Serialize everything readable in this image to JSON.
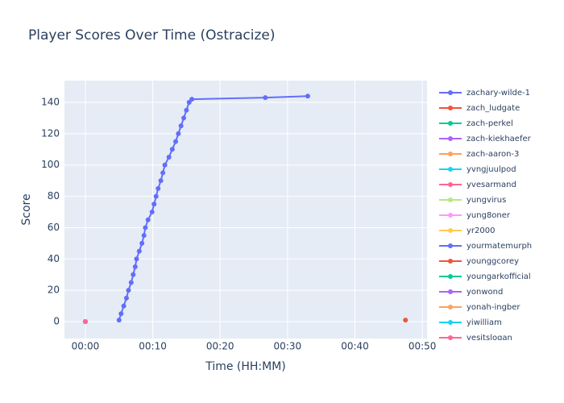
{
  "chart_data": {
    "type": "line",
    "title": "Player Scores Over Time (Ostracize)",
    "x_label": "Time (HH:MM)",
    "y_label": "Score",
    "xlim": [
      -3.1,
      50.7
    ],
    "ylim": [
      -10.8,
      153.9
    ],
    "xticks": [
      {
        "value": 0,
        "label": "00:00"
      },
      {
        "value": 10,
        "label": "00:10"
      },
      {
        "value": 20,
        "label": "00:20"
      },
      {
        "value": 30,
        "label": "00:30"
      },
      {
        "value": 40,
        "label": "00:40"
      },
      {
        "value": 50,
        "label": "00:50"
      }
    ],
    "yticks": [
      0,
      20,
      40,
      60,
      80,
      100,
      120,
      140
    ],
    "grid": true,
    "legend": "right",
    "series": [
      {
        "name": "zachary-wilde-1",
        "color": "#636efa",
        "x": [
          5.0,
          5.3,
          5.7,
          6.1,
          6.4,
          6.8,
          7.1,
          7.4,
          7.6,
          8.0,
          8.4,
          8.7,
          8.9,
          9.3,
          9.9,
          10.2,
          10.5,
          10.8,
          11.2,
          11.5,
          11.8,
          12.4,
          12.9,
          13.4,
          13.8,
          14.2,
          14.6,
          15.0,
          15.4,
          15.8,
          26.7,
          33.0
        ],
        "values": [
          1,
          5,
          10,
          15,
          20,
          25,
          30,
          35,
          40,
          45,
          50,
          55,
          60,
          65,
          70,
          75,
          80,
          85,
          90,
          95,
          100,
          105,
          110,
          115,
          120,
          125,
          130,
          135,
          140,
          142,
          143,
          144
        ]
      },
      {
        "name": "zach_ludgate",
        "color": "#EF553B",
        "x": [
          47.5
        ],
        "values": [
          1
        ]
      },
      {
        "name": "zach-perkel",
        "color": "#00cc96",
        "x": [
          0
        ],
        "values": [
          0
        ]
      },
      {
        "name": "zach-kiekhaefer",
        "color": "#ab63fa",
        "x": [
          0
        ],
        "values": [
          0
        ]
      },
      {
        "name": "zach-aaron-3",
        "color": "#FFA15A",
        "x": [
          0
        ],
        "values": [
          0
        ]
      },
      {
        "name": "yvngjuulpod",
        "color": "#19d3f3",
        "x": [
          0
        ],
        "values": [
          0
        ]
      },
      {
        "name": "yvesarmand",
        "color": "#FF6692",
        "x": [
          0
        ],
        "values": [
          0
        ]
      },
      {
        "name": "yungvirus",
        "color": "#B6E880",
        "x": [
          0
        ],
        "values": [
          0
        ]
      },
      {
        "name": "yung8oner",
        "color": "#FF97FF",
        "x": [
          0
        ],
        "values": [
          0
        ]
      },
      {
        "name": "yr2000",
        "color": "#FECB52",
        "x": [
          0
        ],
        "values": [
          0
        ]
      },
      {
        "name": "yourmatemurph",
        "color": "#636efa",
        "x": [
          0
        ],
        "values": [
          0
        ]
      },
      {
        "name": "younggcorey",
        "color": "#EF553B",
        "x": [
          0
        ],
        "values": [
          0
        ]
      },
      {
        "name": "youngarkofficial",
        "color": "#00cc96",
        "x": [
          0
        ],
        "values": [
          0
        ]
      },
      {
        "name": "yonwond",
        "color": "#ab63fa",
        "x": [
          0
        ],
        "values": [
          0
        ]
      },
      {
        "name": "yonah-ingber",
        "color": "#FFA15A",
        "x": [
          0
        ],
        "values": [
          0
        ]
      },
      {
        "name": "yiwilliam",
        "color": "#19d3f3",
        "x": [
          0
        ],
        "values": [
          0
        ]
      },
      {
        "name": "yesitslogan",
        "color": "#FF6692",
        "x": [
          0
        ],
        "values": [
          0
        ]
      }
    ]
  }
}
